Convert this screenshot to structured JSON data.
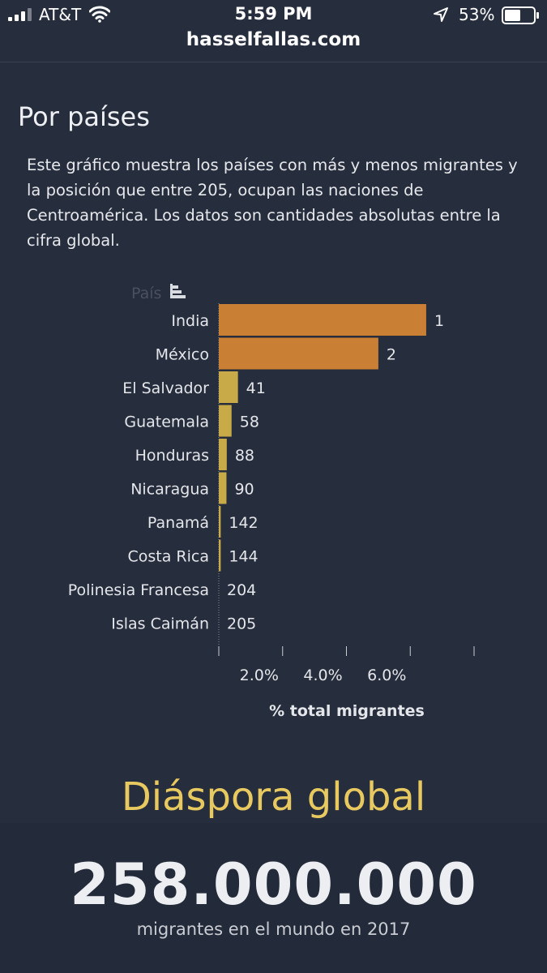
{
  "status_bar": {
    "carrier": "AT&T",
    "time": "5:59 PM",
    "battery": "53%",
    "icons": [
      "signal-icon",
      "wifi-icon",
      "location-icon",
      "battery-icon"
    ]
  },
  "browser": {
    "url": "hasselfallas.com"
  },
  "section": {
    "title": "Por países",
    "description": "Este gráfico muestra los países con más y menos migrantes y la posición que entre 205, ocupan las naciones de Centroamérica. Los datos son cantidades absolutas entre la cifra global."
  },
  "chart_data": {
    "type": "bar",
    "orientation": "horizontal",
    "dimension_label": "País",
    "categories": [
      "India",
      "México",
      "El Salvador",
      "Guatemala",
      "Honduras",
      "Nicaragua",
      "Panamá",
      "Costa Rica",
      "Polinesia Francesa",
      "Islas Caimán"
    ],
    "values": [
      6.5,
      5.0,
      0.6,
      0.4,
      0.25,
      0.24,
      0.06,
      0.06,
      0.0,
      0.0
    ],
    "rank_labels": [
      "1",
      "2",
      "41",
      "58",
      "88",
      "90",
      "142",
      "144",
      "204",
      "205"
    ],
    "highlight": [
      "India",
      "México"
    ],
    "colors": {
      "highlight": "#c98034",
      "default": "#c9aa48"
    },
    "xlabel": "% total migrantes",
    "xticks": [
      "2.0%",
      "4.0%",
      "6.0%"
    ],
    "xtick_values": [
      2,
      4,
      6
    ],
    "xlim": [
      0,
      8
    ],
    "grid": false
  },
  "summary": {
    "title": "Diáspora global",
    "number": "258.000.000",
    "caption": "migrantes en el mundo en 2017"
  }
}
